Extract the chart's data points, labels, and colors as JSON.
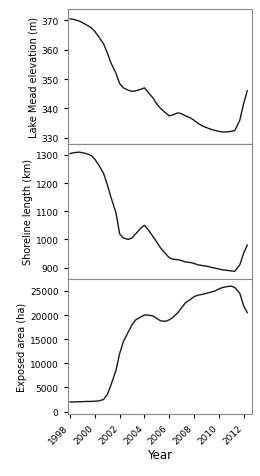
{
  "elevation": {
    "years": [
      1998.0,
      1998.3,
      1998.7,
      1999.0,
      1999.3,
      1999.7,
      2000.0,
      2000.3,
      2000.7,
      2001.0,
      2001.3,
      2001.7,
      2002.0,
      2002.3,
      2002.7,
      2003.0,
      2003.3,
      2003.7,
      2004.0,
      2004.3,
      2004.7,
      2005.0,
      2005.3,
      2005.7,
      2006.0,
      2006.3,
      2006.7,
      2007.0,
      2007.3,
      2007.7,
      2008.0,
      2008.3,
      2008.7,
      2009.0,
      2009.3,
      2009.7,
      2010.0,
      2010.3,
      2010.7,
      2011.0,
      2011.3,
      2011.7,
      2012.0,
      2012.3
    ],
    "values": [
      370.5,
      370.3,
      369.8,
      369.2,
      368.5,
      367.5,
      366.2,
      364.5,
      362.0,
      359.0,
      355.5,
      352.0,
      348.5,
      347.0,
      346.2,
      345.8,
      346.0,
      346.5,
      347.0,
      345.5,
      343.5,
      341.5,
      340.0,
      338.5,
      337.5,
      337.8,
      338.5,
      338.2,
      337.5,
      336.8,
      336.0,
      335.0,
      334.0,
      333.5,
      333.0,
      332.5,
      332.2,
      332.0,
      332.0,
      332.2,
      332.5,
      336.0,
      341.5,
      346.0
    ],
    "ylabel": "Lake Mead elevation (m)",
    "ylim": [
      328,
      374
    ],
    "yticks": [
      330,
      340,
      350,
      360,
      370
    ]
  },
  "shoreline": {
    "years": [
      1998.0,
      1998.3,
      1998.7,
      1999.0,
      1999.3,
      1999.7,
      2000.0,
      2000.3,
      2000.7,
      2001.0,
      2001.3,
      2001.7,
      2002.0,
      2002.3,
      2002.7,
      2003.0,
      2003.3,
      2003.7,
      2004.0,
      2004.3,
      2004.7,
      2005.0,
      2005.3,
      2005.7,
      2006.0,
      2006.3,
      2006.7,
      2007.0,
      2007.3,
      2007.7,
      2008.0,
      2008.3,
      2008.7,
      2009.0,
      2009.3,
      2009.7,
      2010.0,
      2010.3,
      2010.7,
      2011.0,
      2011.3,
      2011.7,
      2012.0,
      2012.3
    ],
    "values": [
      1305,
      1308,
      1310,
      1308,
      1305,
      1298,
      1285,
      1265,
      1235,
      1195,
      1150,
      1095,
      1020,
      1005,
      1000,
      1005,
      1020,
      1040,
      1050,
      1035,
      1010,
      990,
      970,
      950,
      935,
      930,
      928,
      925,
      920,
      918,
      915,
      910,
      907,
      905,
      902,
      898,
      895,
      892,
      890,
      888,
      887,
      910,
      950,
      980
    ],
    "ylabel": "Shoreline length (km)",
    "ylim": [
      860,
      1340
    ],
    "yticks": [
      900,
      1000,
      1100,
      1200,
      1300
    ]
  },
  "exposed": {
    "years": [
      1998.0,
      1998.3,
      1998.7,
      1999.0,
      1999.3,
      1999.7,
      2000.0,
      2000.3,
      2000.7,
      2001.0,
      2001.3,
      2001.7,
      2002.0,
      2002.3,
      2002.7,
      2003.0,
      2003.3,
      2003.7,
      2004.0,
      2004.3,
      2004.7,
      2005.0,
      2005.3,
      2005.7,
      2006.0,
      2006.3,
      2006.7,
      2007.0,
      2007.3,
      2007.7,
      2008.0,
      2008.3,
      2008.7,
      2009.0,
      2009.3,
      2009.7,
      2010.0,
      2010.3,
      2010.7,
      2011.0,
      2011.3,
      2011.7,
      2012.0,
      2012.3
    ],
    "values": [
      2000,
      2000,
      2050,
      2050,
      2100,
      2100,
      2150,
      2200,
      2500,
      3500,
      5500,
      8500,
      12000,
      14500,
      16500,
      18000,
      19000,
      19600,
      20000,
      20000,
      19800,
      19300,
      18800,
      18700,
      19000,
      19500,
      20500,
      21500,
      22500,
      23200,
      23800,
      24100,
      24300,
      24500,
      24700,
      25000,
      25400,
      25700,
      25900,
      26000,
      25700,
      24500,
      22000,
      20500
    ],
    "ylabel": "Exposed area (ha)",
    "ylim": [
      -500,
      27500
    ],
    "yticks": [
      0,
      5000,
      10000,
      15000,
      20000,
      25000
    ]
  },
  "xlim": [
    1997.8,
    2012.7
  ],
  "xticks": [
    1998,
    2000,
    2002,
    2004,
    2006,
    2008,
    2010,
    2012
  ],
  "xticklabels": [
    "1998",
    "2000",
    "2002",
    "2004",
    "2006",
    "2008",
    "2010",
    "2012"
  ],
  "xlabel": "Year",
  "line_color": "#1a1a1a",
  "line_width": 1.0,
  "background_color": "#ffffff",
  "tick_fontsize": 6.5,
  "label_fontsize": 7.0,
  "xlabel_fontsize": 8.5
}
